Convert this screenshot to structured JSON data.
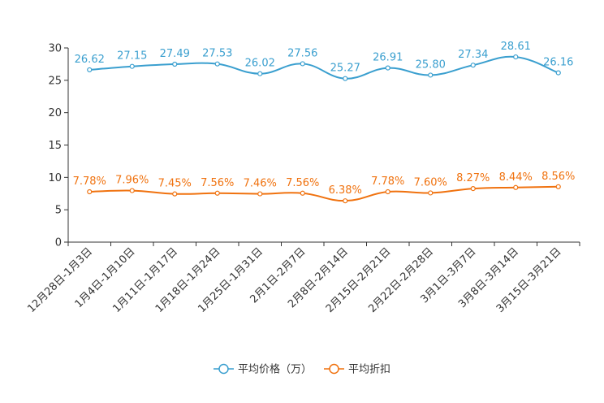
{
  "chart_data": {
    "type": "line",
    "title": "",
    "xlabel": "",
    "ylabel": "",
    "ylim": [
      0,
      30
    ],
    "yticks": [
      0,
      5,
      10,
      15,
      20,
      25,
      30
    ],
    "ytick_labels": [
      "0",
      "5",
      "10",
      "15",
      "20",
      "25",
      "30"
    ],
    "grid": false,
    "legend_position": "bottom-center",
    "categories": [
      "12月28日-1月3日",
      "1月4日-1月10日",
      "1月11日-1月17日",
      "1月18日-1月24日",
      "1月25日-1月31日",
      "2月1日-2月7日",
      "2月8日-2月14日",
      "2月15日-2月21日",
      "2月22日-2月28日",
      "3月1日-3月7日",
      "3月8日-3月14日",
      "3月15日-3月21日"
    ],
    "series": [
      {
        "name": "平均价格（万）",
        "color": "#3a9fcf",
        "values": [
          26.62,
          27.15,
          27.49,
          27.53,
          26.02,
          27.56,
          25.27,
          26.91,
          25.8,
          27.34,
          28.61,
          26.16
        ],
        "labels": [
          "26.62",
          "27.15",
          "27.49",
          "27.53",
          "26.02",
          "27.56",
          "25.27",
          "26.91",
          "25.80",
          "27.34",
          "28.61",
          "26.16"
        ]
      },
      {
        "name": "平均折扣",
        "color": "#f0720f",
        "values": [
          7.78,
          7.96,
          7.45,
          7.56,
          7.46,
          7.56,
          6.38,
          7.78,
          7.6,
          8.27,
          8.44,
          8.56
        ],
        "labels": [
          "7.78%",
          "7.96%",
          "7.45%",
          "7.56%",
          "7.46%",
          "7.56%",
          "6.38%",
          "7.78%",
          "7.60%",
          "8.27%",
          "8.44%",
          "8.56%"
        ]
      }
    ]
  }
}
